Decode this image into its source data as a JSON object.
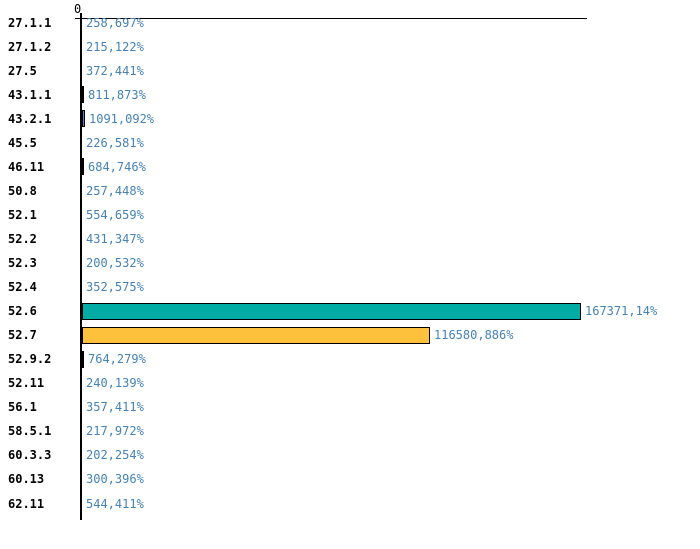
{
  "chart_data": {
    "type": "bar",
    "orientation": "horizontal",
    "title": "",
    "xlabel": "",
    "ylabel": "",
    "axis": {
      "tick_label": "0",
      "xlim": [
        0,
        170000
      ],
      "grid": false
    },
    "legend": null,
    "categories": [
      "27.1.1",
      "27.1.2",
      "27.5",
      "43.1.1",
      "43.2.1",
      "45.5",
      "46.11",
      "50.8",
      "52.1",
      "52.2",
      "52.3",
      "52.4",
      "52.6",
      "52.7",
      "52.9.2",
      "52.11",
      "56.1",
      "58.5.1",
      "60.3.3",
      "60.13",
      "62.11"
    ],
    "values": [
      258.697,
      215.122,
      372.441,
      811.873,
      1091.092,
      226.581,
      684.746,
      257.448,
      554.659,
      431.347,
      200.532,
      352.575,
      167371.14,
      116580.886,
      764.279,
      240.139,
      357.411,
      217.972,
      202.254,
      300.396,
      544.411
    ],
    "value_labels": [
      "258,697%",
      "215,122%",
      "372,441%",
      "811,873%",
      "1091,092%",
      "226,581%",
      "684,746%",
      "257,448%",
      "554,659%",
      "431,347%",
      "200,532%",
      "352,575%",
      "167371,14%",
      "116580,886%",
      "764,279%",
      "240,139%",
      "357,411%",
      "217,972%",
      "202,254%",
      "300,396%",
      "544,411%"
    ],
    "bar_colors": [
      "#000000",
      "#000000",
      "#000000",
      "#000000",
      "#7C6BC9",
      "#000000",
      "#000000",
      "#000000",
      "#000000",
      "#000000",
      "#000000",
      "#000000",
      "#00ACA4",
      "#FDC13C",
      "#000000",
      "#000000",
      "#000000",
      "#000000",
      "#000000",
      "#000000",
      "#000000"
    ],
    "colors": {
      "value_text": "#4682B4",
      "category_text": "#000000",
      "axis": "#000000",
      "bar_outline": "#000000",
      "background": "#FFFFFF"
    }
  }
}
